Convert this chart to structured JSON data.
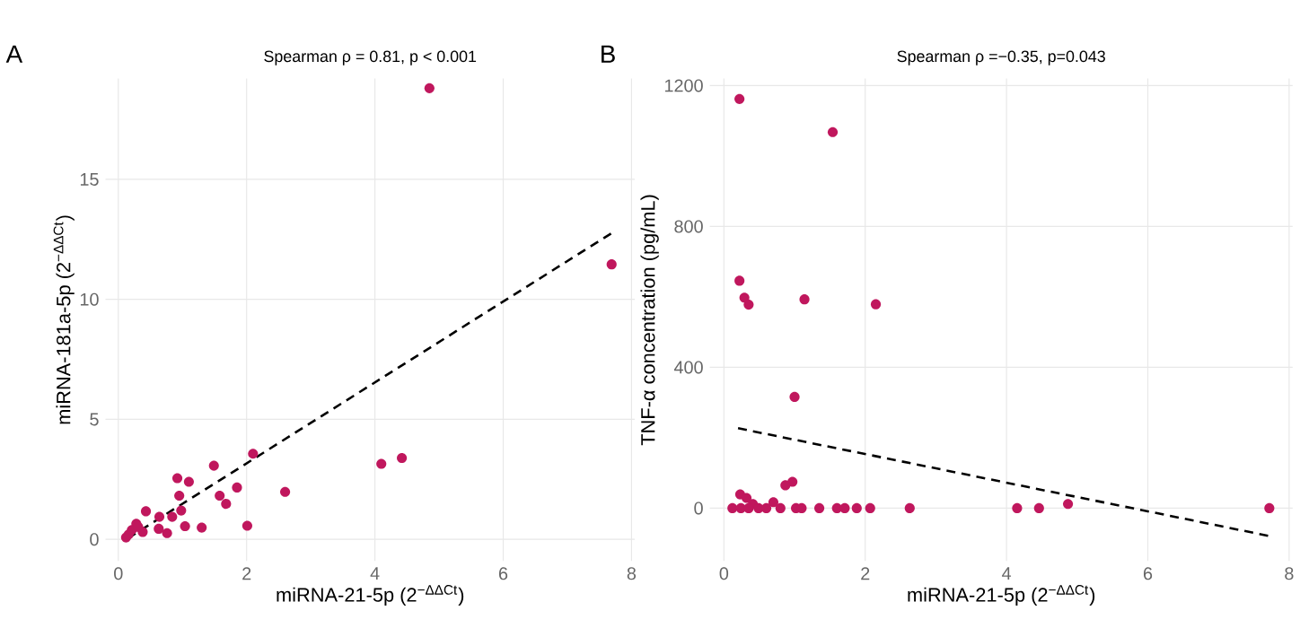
{
  "chart_data": [
    {
      "type": "scatter",
      "title": "Spearman ρ = 0.81, p < 0.001",
      "xlabel": "miRNA-21-5p (2$^{−ΔΔCt}$)",
      "ylabel": "miRNA-181a-5p (2$^{−ΔΔCt}$)",
      "annotations": [
        "A"
      ],
      "xlim": [
        -0.2,
        8.05
      ],
      "ylim": [
        -0.9,
        19.2
      ],
      "xticks": [
        0,
        2,
        4,
        6,
        8
      ],
      "yticks": [
        0,
        5,
        10,
        15
      ],
      "grid": true,
      "series": [
        {
          "color": "#c0175d",
          "marker": "circle",
          "x": [
            4.85,
            7.69,
            2.1,
            4.1,
            4.42,
            1.49,
            0.92,
            1.1,
            1.85,
            2.6,
            0.95,
            1.58,
            1.68,
            0.43,
            0.64,
            0.98,
            0.84,
            1.04,
            1.3,
            2.01,
            0.76,
            0.63,
            0.38,
            0.28,
            0.21,
            0.12,
            0.16,
            0.31
          ],
          "values": [
            18.8,
            11.46,
            3.57,
            3.15,
            3.39,
            3.07,
            2.55,
            2.4,
            2.16,
            1.98,
            1.82,
            1.82,
            1.48,
            1.17,
            0.94,
            1.2,
            0.94,
            0.55,
            0.49,
            0.57,
            0.26,
            0.44,
            0.31,
            0.65,
            0.39,
            0.08,
            0.2,
            0.52
          ]
        },
        {
          "type": "line",
          "color": "#000000",
          "line_style": "dashed",
          "marker": "none",
          "x": [
            0.15,
            7.69
          ],
          "values": [
            0.05,
            12.76
          ]
        }
      ]
    },
    {
      "type": "scatter",
      "title": "Spearman ρ =−0.35, p=0.043",
      "xlabel": "miRNA-21-5p (2$^{−ΔΔCt}$)",
      "ylabel": "TNF-α concentration (pg/mL)",
      "annotations": [
        "B"
      ],
      "xlim": [
        -0.2,
        8.05
      ],
      "ylim": [
        -150,
        1220
      ],
      "xticks": [
        0,
        2,
        4,
        6,
        8
      ],
      "yticks": [
        0,
        400,
        800,
        1200
      ],
      "grid": true,
      "series": [
        {
          "color": "#c0175d",
          "marker": "circle",
          "x": [
            0.22,
            1.54,
            0.22,
            0.29,
            0.35,
            1.14,
            2.15,
            1.0,
            0.97,
            0.87,
            0.23,
            0.32,
            0.7,
            4.87,
            0.41,
            0.12,
            0.24,
            0.35,
            0.49,
            0.6,
            0.8,
            1.02,
            1.1,
            1.35,
            1.6,
            1.71,
            1.88,
            2.07,
            2.63,
            4.15,
            4.46,
            7.72
          ],
          "values": [
            1162,
            1068,
            646,
            598,
            578,
            593,
            579,
            316,
            75,
            65,
            39,
            29,
            17,
            12,
            12,
            0,
            0,
            0,
            0,
            0,
            0,
            0,
            0,
            0,
            0,
            0,
            0,
            0,
            0,
            0,
            0,
            0
          ]
        },
        {
          "type": "line",
          "color": "#000000",
          "line_style": "dashed",
          "marker": "none",
          "x": [
            0.2,
            7.72
          ],
          "values": [
            227,
            -79
          ]
        }
      ]
    }
  ]
}
